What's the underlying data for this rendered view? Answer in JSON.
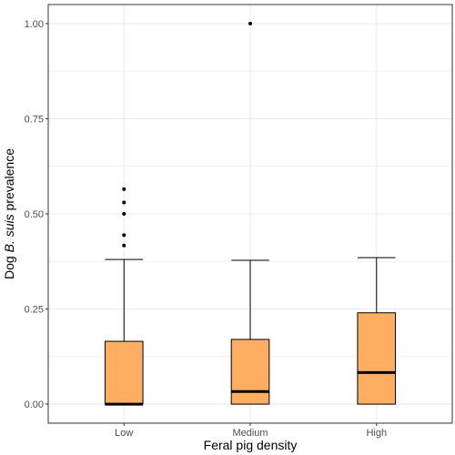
{
  "chart_data": {
    "type": "box",
    "xlabel": "Feral pig density",
    "ylabel": {
      "prefix": "Dog ",
      "italic": "B. suis",
      "suffix": " prevalence"
    },
    "categories": [
      "Low",
      "Medium",
      "High"
    ],
    "ylim": [
      -0.05,
      1.05
    ],
    "yticks": [
      0.0,
      0.25,
      0.5,
      0.75,
      1.0
    ],
    "ytick_labels": [
      "0.00",
      "0.25",
      "0.50",
      "0.75",
      "1.00"
    ],
    "grid": true,
    "boxes": [
      {
        "category": "Low",
        "whisker_low": 0.0,
        "q1": 0.0,
        "median": 0.0,
        "q3": 0.165,
        "whisker_high": 0.38,
        "outliers": [
          0.417,
          0.444,
          0.5,
          0.53,
          0.565
        ]
      },
      {
        "category": "Medium",
        "whisker_low": 0.0,
        "q1": 0.0,
        "median": 0.033,
        "q3": 0.17,
        "whisker_high": 0.378,
        "outliers": [
          1.0
        ]
      },
      {
        "category": "High",
        "whisker_low": 0.0,
        "q1": 0.0,
        "median": 0.083,
        "q3": 0.24,
        "whisker_high": 0.385,
        "outliers": []
      }
    ],
    "colors": {
      "box_fill": "#fdae61",
      "box_stroke": "#000000",
      "grid": "#ebebeb",
      "panel_border": "#333333"
    }
  }
}
